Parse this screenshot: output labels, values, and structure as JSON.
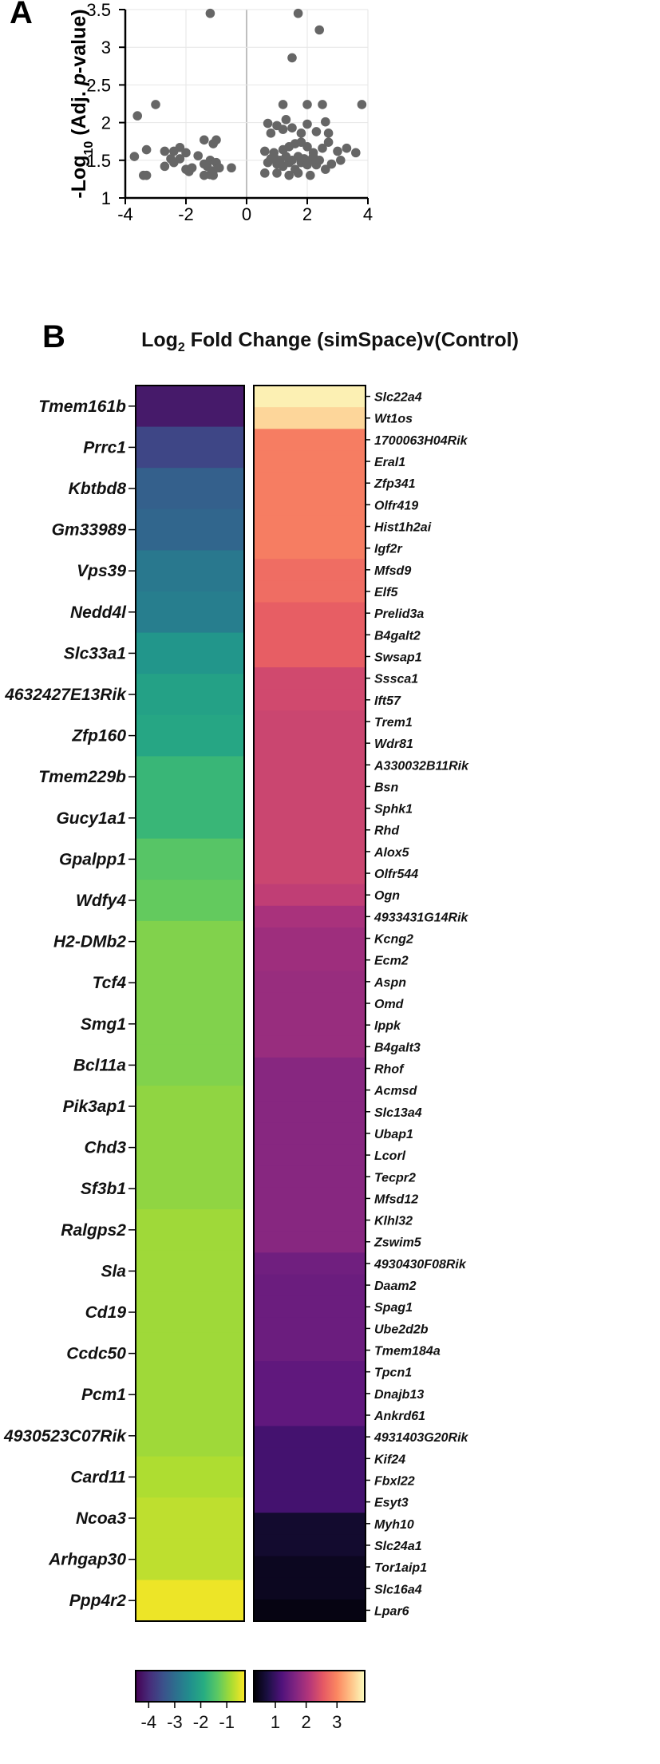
{
  "panel_a": {
    "letter": "A"
  },
  "panel_b": {
    "letter": "B"
  },
  "chart_data": [
    {
      "type": "scatter",
      "title": "",
      "xlabel": "",
      "ylabel_parts": [
        "-Log",
        "10",
        " (Adj. ",
        "p",
        "-value)"
      ],
      "xlim": [
        -4,
        4
      ],
      "ylim": [
        1,
        3.5
      ],
      "xticks": [
        -4,
        -2,
        0,
        2,
        4
      ],
      "yticks": [
        1,
        1.5,
        2,
        2.5,
        3,
        3.5
      ],
      "grid": true,
      "point_color": "#666666",
      "x": [
        -1.2,
        1.7,
        2.4,
        1.5,
        -3.6,
        -3.0,
        1.2,
        2.0,
        2.5,
        3.8,
        -3.3,
        -2.4,
        -2.2,
        -1.4,
        -1.1,
        -1.0,
        0.6,
        0.9,
        1.2,
        1.4,
        1.6,
        1.8,
        2.0,
        2.2,
        2.5,
        2.7,
        3.0,
        3.3,
        3.6,
        -3.7,
        -3.3,
        -2.7,
        -2.5,
        -2.4,
        -2.2,
        -2.0,
        -1.8,
        -1.6,
        -1.4,
        -1.3,
        -1.2,
        -1.1,
        -1.0,
        -0.9,
        -0.5,
        0.6,
        0.7,
        0.8,
        0.9,
        1.0,
        1.1,
        1.2,
        1.3,
        1.4,
        1.5,
        1.6,
        1.7,
        1.8,
        1.9,
        2.0,
        2.1,
        2.2,
        2.3,
        2.4,
        2.6,
        2.8,
        3.1,
        -3.4,
        -2.7,
        -2.0,
        -1.9,
        -1.4,
        -1.2,
        -1.1,
        0.7,
        0.8,
        1.0,
        1.2,
        1.3,
        1.5,
        1.8,
        2.0,
        2.3,
        2.6,
        2.7,
        1.0,
        1.4,
        1.7,
        2.1
      ],
      "y": [
        3.45,
        3.45,
        3.23,
        2.86,
        2.09,
        2.24,
        2.24,
        2.24,
        2.24,
        2.24,
        1.64,
        1.62,
        1.67,
        1.77,
        1.72,
        1.77,
        1.62,
        1.6,
        1.64,
        1.68,
        1.72,
        1.74,
        1.68,
        1.6,
        1.66,
        1.74,
        1.62,
        1.66,
        1.6,
        1.55,
        1.3,
        1.42,
        1.52,
        1.47,
        1.52,
        1.38,
        1.4,
        1.56,
        1.45,
        1.42,
        1.5,
        1.36,
        1.47,
        1.4,
        1.4,
        1.33,
        1.47,
        1.52,
        1.55,
        1.45,
        1.5,
        1.42,
        1.55,
        1.47,
        1.5,
        1.38,
        1.55,
        1.47,
        1.52,
        1.44,
        1.5,
        1.55,
        1.44,
        1.5,
        1.38,
        1.45,
        1.5,
        1.3,
        1.62,
        1.6,
        1.35,
        1.3,
        1.31,
        1.3,
        1.99,
        1.86,
        1.96,
        1.91,
        2.04,
        1.93,
        1.86,
        1.98,
        1.88,
        2.01,
        1.86,
        1.33,
        1.3,
        1.33,
        1.3
      ]
    },
    {
      "type": "heatmap",
      "title_parts": [
        "Log",
        "2",
        " Fold Change (simSpace)v(Control)"
      ],
      "left_genes": [
        "Tmem161b",
        "Prrc1",
        "Kbtbd8",
        "Gm33989",
        "Vps39",
        "Nedd4l",
        "Slc33a1",
        "4632427E13Rik",
        "Zfp160",
        "Tmem229b",
        "Gucy1a1",
        "Gpalpp1",
        "Wdfy4",
        "H2-DMb2",
        "Tcf4",
        "Smg1",
        "Bcl11a",
        "Pik3ap1",
        "Chd3",
        "Sf3b1",
        "Ralgps2",
        "Sla",
        "Cd19",
        "Ccdc50",
        "Pcm1",
        "4930523C07Rik",
        "Card11",
        "Ncoa3",
        "Arhgap30",
        "Ppp4r2"
      ],
      "left_values": [
        -4.2,
        -3.6,
        -3.2,
        -3.1,
        -2.8,
        -2.7,
        -2.3,
        -2.1,
        -2.0,
        -1.7,
        -1.7,
        -1.4,
        -1.3,
        -1.1,
        -1.1,
        -1.1,
        -1.1,
        -1.0,
        -1.0,
        -1.0,
        -0.9,
        -0.9,
        -0.9,
        -0.9,
        -0.9,
        -0.9,
        -0.8,
        -0.7,
        -0.7,
        -0.4
      ],
      "right_genes": [
        "Slc22a4",
        "Wt1os",
        "1700063H04Rik",
        "Eral1",
        "Zfp341",
        "Olfr419",
        "Hist1h2ai",
        "Igf2r",
        "Mfsd9",
        "Elf5",
        "Prelid3a",
        "B4galt2",
        "Swsap1",
        "Sssca1",
        "Ift57",
        "Trem1",
        "Wdr81",
        "A330032B11Rik",
        "Bsn",
        "Sphk1",
        "Rhd",
        "Alox5",
        "Olfr544",
        "Ogn",
        "4933431G14Rik",
        "Kcng2",
        "Ecm2",
        "Aspn",
        "Omd",
        "Ippk",
        "B4galt3",
        "Rhof",
        "Acmsd",
        "Slc13a4",
        "Ubap1",
        "Lcorl",
        "Tecpr2",
        "Mfsd12",
        "Klhl32",
        "Zswim5",
        "4930430F08Rik",
        "Daam2",
        "Spag1",
        "Ube2d2b",
        "Tmem184a",
        "Tpcn1",
        "Dnajb13",
        "Ankrd61",
        "4931403G20Rik",
        "Kif24",
        "Fbxl22",
        "Esyt3",
        "Myh10",
        "Slc24a1",
        "Tor1aip1",
        "Slc16a4",
        "Lpar6"
      ],
      "right_values": [
        3.8,
        3.6,
        2.9,
        2.9,
        2.9,
        2.9,
        2.9,
        2.9,
        2.75,
        2.75,
        2.6,
        2.6,
        2.6,
        2.35,
        2.35,
        2.3,
        2.3,
        2.3,
        2.3,
        2.3,
        2.3,
        2.3,
        2.3,
        2.2,
        2.0,
        1.9,
        1.9,
        1.85,
        1.85,
        1.85,
        1.85,
        1.7,
        1.7,
        1.7,
        1.7,
        1.7,
        1.7,
        1.7,
        1.7,
        1.7,
        1.5,
        1.45,
        1.45,
        1.45,
        1.45,
        1.35,
        1.35,
        1.35,
        1.1,
        1.1,
        1.1,
        1.1,
        0.6,
        0.6,
        0.5,
        0.5,
        0.4
      ],
      "left_colorbar": {
        "ticks": [
          "-4",
          "-3",
          "-2",
          "-1"
        ],
        "range": [
          -4.5,
          -0.3
        ]
      },
      "right_colorbar": {
        "ticks": [
          "1",
          "2",
          "3"
        ],
        "range": [
          0.3,
          3.9
        ]
      },
      "left_colormap": "viridis",
      "right_colormap": "magma"
    }
  ]
}
